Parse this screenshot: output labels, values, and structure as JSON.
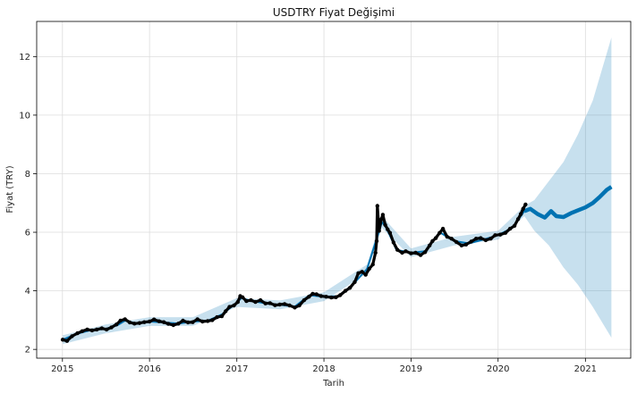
{
  "chart_data": {
    "type": "line",
    "title": "USDTRY Fiyat Değişimi",
    "xlabel": "Tarih",
    "ylabel": "Fiyat (TRY)",
    "x_range": [
      "2014-09-15",
      "2021-07-10"
    ],
    "ylim": [
      1.7,
      13.2
    ],
    "x_ticks": [
      {
        "date": "2015-01-01",
        "label": "2015"
      },
      {
        "date": "2016-01-01",
        "label": "2016"
      },
      {
        "date": "2017-01-01",
        "label": "2017"
      },
      {
        "date": "2018-01-01",
        "label": "2018"
      },
      {
        "date": "2019-01-01",
        "label": "2019"
      },
      {
        "date": "2020-01-01",
        "label": "2020"
      },
      {
        "date": "2021-01-01",
        "label": "2021"
      }
    ],
    "y_ticks": [
      2,
      4,
      6,
      8,
      10,
      12
    ],
    "grid": true,
    "colors": {
      "actual": "#000000",
      "forecast": "#0072B2",
      "interval": "#0072B2"
    },
    "series": [
      {
        "role": "actual",
        "style": "dots",
        "points": [
          [
            "2015-01-02",
            2.33
          ],
          [
            "2015-01-20",
            2.29
          ],
          [
            "2015-02-10",
            2.45
          ],
          [
            "2015-03-05",
            2.55
          ],
          [
            "2015-03-25",
            2.62
          ],
          [
            "2015-04-15",
            2.68
          ],
          [
            "2015-05-05",
            2.65
          ],
          [
            "2015-05-25",
            2.68
          ],
          [
            "2015-06-15",
            2.72
          ],
          [
            "2015-07-05",
            2.68
          ],
          [
            "2015-07-25",
            2.75
          ],
          [
            "2015-08-15",
            2.85
          ],
          [
            "2015-09-01",
            2.98
          ],
          [
            "2015-09-20",
            3.03
          ],
          [
            "2015-10-10",
            2.92
          ],
          [
            "2015-10-30",
            2.88
          ],
          [
            "2015-11-20",
            2.9
          ],
          [
            "2015-12-10",
            2.93
          ],
          [
            "2016-01-01",
            2.95
          ],
          [
            "2016-01-20",
            3.02
          ],
          [
            "2016-02-10",
            2.96
          ],
          [
            "2016-03-01",
            2.93
          ],
          [
            "2016-03-20",
            2.87
          ],
          [
            "2016-04-10",
            2.83
          ],
          [
            "2016-05-01",
            2.88
          ],
          [
            "2016-05-20",
            2.98
          ],
          [
            "2016-06-10",
            2.92
          ],
          [
            "2016-06-30",
            2.93
          ],
          [
            "2016-07-20",
            3.03
          ],
          [
            "2016-08-10",
            2.95
          ],
          [
            "2016-09-01",
            2.97
          ],
          [
            "2016-09-20",
            3.0
          ],
          [
            "2016-10-10",
            3.1
          ],
          [
            "2016-10-30",
            3.13
          ],
          [
            "2016-11-15",
            3.3
          ],
          [
            "2016-12-01",
            3.45
          ],
          [
            "2016-12-20",
            3.5
          ],
          [
            "2017-01-05",
            3.62
          ],
          [
            "2017-01-15",
            3.82
          ],
          [
            "2017-01-25",
            3.78
          ],
          [
            "2017-02-10",
            3.65
          ],
          [
            "2017-03-01",
            3.68
          ],
          [
            "2017-03-20",
            3.62
          ],
          [
            "2017-04-10",
            3.68
          ],
          [
            "2017-05-01",
            3.57
          ],
          [
            "2017-05-20",
            3.58
          ],
          [
            "2017-06-10",
            3.51
          ],
          [
            "2017-06-30",
            3.53
          ],
          [
            "2017-07-20",
            3.55
          ],
          [
            "2017-08-10",
            3.5
          ],
          [
            "2017-09-01",
            3.43
          ],
          [
            "2017-09-20",
            3.5
          ],
          [
            "2017-10-10",
            3.68
          ],
          [
            "2017-10-30",
            3.8
          ],
          [
            "2017-11-15",
            3.9
          ],
          [
            "2017-12-01",
            3.88
          ],
          [
            "2017-12-20",
            3.82
          ],
          [
            "2018-01-10",
            3.8
          ],
          [
            "2018-02-01",
            3.77
          ],
          [
            "2018-02-20",
            3.78
          ],
          [
            "2018-03-10",
            3.85
          ],
          [
            "2018-04-01",
            4.0
          ],
          [
            "2018-04-20",
            4.1
          ],
          [
            "2018-05-10",
            4.3
          ],
          [
            "2018-05-25",
            4.6
          ],
          [
            "2018-06-10",
            4.65
          ],
          [
            "2018-06-25",
            4.55
          ],
          [
            "2018-07-10",
            4.75
          ],
          [
            "2018-07-25",
            4.9
          ],
          [
            "2018-08-05",
            5.3
          ],
          [
            "2018-08-10",
            5.7
          ],
          [
            "2018-08-13",
            6.9
          ],
          [
            "2018-08-20",
            6.05
          ],
          [
            "2018-08-30",
            6.45
          ],
          [
            "2018-09-05",
            6.6
          ],
          [
            "2018-09-15",
            6.25
          ],
          [
            "2018-09-25",
            6.1
          ],
          [
            "2018-10-05",
            5.98
          ],
          [
            "2018-10-20",
            5.65
          ],
          [
            "2018-11-05",
            5.4
          ],
          [
            "2018-11-25",
            5.3
          ],
          [
            "2018-12-10",
            5.35
          ],
          [
            "2019-01-01",
            5.28
          ],
          [
            "2019-01-20",
            5.3
          ],
          [
            "2019-02-10",
            5.22
          ],
          [
            "2019-03-01",
            5.32
          ],
          [
            "2019-03-20",
            5.55
          ],
          [
            "2019-04-01",
            5.7
          ],
          [
            "2019-04-15",
            5.8
          ],
          [
            "2019-05-01",
            5.98
          ],
          [
            "2019-05-15",
            6.12
          ],
          [
            "2019-06-01",
            5.85
          ],
          [
            "2019-06-20",
            5.78
          ],
          [
            "2019-07-10",
            5.67
          ],
          [
            "2019-08-01",
            5.55
          ],
          [
            "2019-08-20",
            5.58
          ],
          [
            "2019-09-10",
            5.68
          ],
          [
            "2019-10-01",
            5.78
          ],
          [
            "2019-10-20",
            5.8
          ],
          [
            "2019-11-10",
            5.73
          ],
          [
            "2019-12-01",
            5.78
          ],
          [
            "2019-12-20",
            5.9
          ],
          [
            "2020-01-10",
            5.92
          ],
          [
            "2020-02-01",
            5.98
          ],
          [
            "2020-02-20",
            6.12
          ],
          [
            "2020-03-10",
            6.22
          ],
          [
            "2020-03-25",
            6.45
          ],
          [
            "2020-04-05",
            6.62
          ],
          [
            "2020-04-15",
            6.8
          ],
          [
            "2020-04-25",
            6.95
          ]
        ]
      },
      {
        "role": "forecast",
        "style": "line",
        "points": [
          [
            "2015-01-02",
            2.33
          ],
          [
            "2015-03-01",
            2.53
          ],
          [
            "2015-05-01",
            2.66
          ],
          [
            "2015-07-01",
            2.7
          ],
          [
            "2015-08-20",
            2.83
          ],
          [
            "2015-09-20",
            2.98
          ],
          [
            "2015-11-01",
            2.9
          ],
          [
            "2016-01-01",
            2.95
          ],
          [
            "2016-03-01",
            2.92
          ],
          [
            "2016-05-01",
            2.88
          ],
          [
            "2016-07-01",
            2.95
          ],
          [
            "2016-09-01",
            2.98
          ],
          [
            "2016-11-01",
            3.2
          ],
          [
            "2017-01-01",
            3.6
          ],
          [
            "2017-01-20",
            3.75
          ],
          [
            "2017-03-01",
            3.66
          ],
          [
            "2017-05-01",
            3.57
          ],
          [
            "2017-07-01",
            3.52
          ],
          [
            "2017-09-01",
            3.46
          ],
          [
            "2017-11-01",
            3.85
          ],
          [
            "2018-01-01",
            3.8
          ],
          [
            "2018-03-01",
            3.82
          ],
          [
            "2018-05-01",
            4.2
          ],
          [
            "2018-07-01",
            4.75
          ],
          [
            "2018-08-15",
            5.9
          ],
          [
            "2018-09-01",
            6.35
          ],
          [
            "2018-09-20",
            6.15
          ],
          [
            "2018-11-01",
            5.4
          ],
          [
            "2019-01-01",
            5.3
          ],
          [
            "2019-03-01",
            5.35
          ],
          [
            "2019-05-01",
            6.0
          ],
          [
            "2019-07-01",
            5.7
          ],
          [
            "2019-09-01",
            5.62
          ],
          [
            "2019-11-01",
            5.75
          ],
          [
            "2020-01-01",
            5.9
          ],
          [
            "2020-03-01",
            6.15
          ],
          [
            "2020-04-20",
            6.72
          ],
          [
            "2020-05-15",
            6.8
          ],
          [
            "2020-06-15",
            6.62
          ],
          [
            "2020-07-15",
            6.5
          ],
          [
            "2020-08-10",
            6.72
          ],
          [
            "2020-09-01",
            6.55
          ],
          [
            "2020-10-01",
            6.52
          ],
          [
            "2020-11-01",
            6.65
          ],
          [
            "2020-12-01",
            6.75
          ],
          [
            "2021-01-01",
            6.85
          ],
          [
            "2021-02-01",
            7.0
          ],
          [
            "2021-03-01",
            7.2
          ],
          [
            "2021-04-01",
            7.45
          ],
          [
            "2021-04-20",
            7.55
          ]
        ]
      },
      {
        "role": "interval",
        "style": "band",
        "points": [
          [
            "2015-01-02",
            2.18,
            2.48
          ],
          [
            "2015-07-01",
            2.55,
            2.85
          ],
          [
            "2016-01-01",
            2.8,
            3.1
          ],
          [
            "2016-07-01",
            2.8,
            3.1
          ],
          [
            "2017-01-01",
            3.45,
            3.75
          ],
          [
            "2017-07-01",
            3.37,
            3.67
          ],
          [
            "2018-01-01",
            3.65,
            3.95
          ],
          [
            "2018-07-01",
            4.6,
            4.9
          ],
          [
            "2018-09-01",
            6.15,
            6.55
          ],
          [
            "2019-01-01",
            5.15,
            5.45
          ],
          [
            "2019-07-01",
            5.55,
            5.85
          ],
          [
            "2020-01-01",
            5.75,
            6.05
          ],
          [
            "2020-04-20",
            6.55,
            6.9
          ],
          [
            "2020-06-01",
            6.05,
            7.1
          ],
          [
            "2020-08-01",
            5.55,
            7.75
          ],
          [
            "2020-10-01",
            4.8,
            8.4
          ],
          [
            "2020-12-01",
            4.2,
            9.35
          ],
          [
            "2021-02-01",
            3.45,
            10.5
          ],
          [
            "2021-04-20",
            2.4,
            12.65
          ]
        ]
      }
    ]
  }
}
